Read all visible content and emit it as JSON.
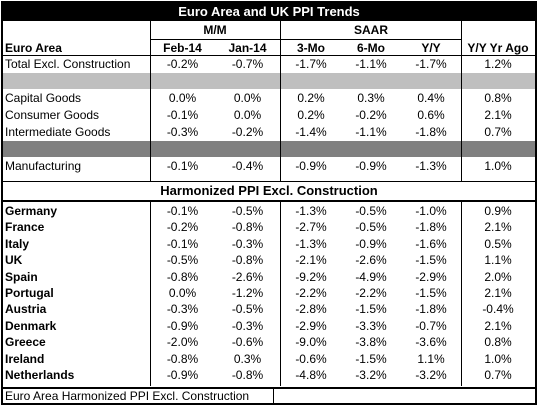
{
  "title": "Euro Area and UK PPI Trends",
  "groups": {
    "mm": "M/M",
    "saar": "SAAR"
  },
  "columns": [
    "Euro Area",
    "Feb-14",
    "Jan-14",
    "3-Mo",
    "6-Mo",
    "Y/Y",
    "Y/Y Yr Ago"
  ],
  "euro_rows": [
    {
      "label": "Total Excl. Construction",
      "values": [
        "-0.2%",
        "-0.7%",
        "-1.7%",
        "-1.1%",
        "-1.7%",
        "1.2%"
      ]
    },
    {
      "label": "Capital Goods",
      "values": [
        "0.0%",
        "0.0%",
        "0.2%",
        "0.3%",
        "0.4%",
        "0.8%"
      ]
    },
    {
      "label": "Consumer Goods",
      "values": [
        "-0.1%",
        "0.0%",
        "0.2%",
        "-0.2%",
        "0.6%",
        "2.1%"
      ]
    },
    {
      "label": "Intermediate Goods",
      "values": [
        "-0.3%",
        "-0.2%",
        "-1.4%",
        "-1.1%",
        "-1.8%",
        "0.7%"
      ]
    },
    {
      "label": "Manufacturing",
      "values": [
        "-0.1%",
        "-0.4%",
        "-0.9%",
        "-0.9%",
        "-1.3%",
        "1.0%"
      ]
    }
  ],
  "harmonized_title": "Harmonized PPI Excl. Construction",
  "countries": [
    {
      "label": "Germany",
      "values": [
        "-0.1%",
        "-0.5%",
        "-1.3%",
        "-0.5%",
        "-1.0%",
        "0.9%"
      ]
    },
    {
      "label": "France",
      "values": [
        "-0.2%",
        "-0.8%",
        "-2.7%",
        "-0.5%",
        "-1.8%",
        "2.1%"
      ]
    },
    {
      "label": "Italy",
      "values": [
        "-0.1%",
        "-0.3%",
        "-1.3%",
        "-0.9%",
        "-1.6%",
        "0.5%"
      ]
    },
    {
      "label": "UK",
      "values": [
        "-0.5%",
        "-0.8%",
        "-2.1%",
        "-2.6%",
        "-1.5%",
        "1.1%"
      ]
    },
    {
      "label": "Spain",
      "values": [
        "-0.8%",
        "-2.6%",
        "-9.2%",
        "-4.9%",
        "-2.9%",
        "2.0%"
      ]
    },
    {
      "label": "Portugal",
      "values": [
        "0.0%",
        "-1.2%",
        "-2.2%",
        "-2.2%",
        "-1.5%",
        "2.1%"
      ]
    },
    {
      "label": "Austria",
      "values": [
        "-0.3%",
        "-0.5%",
        "-2.8%",
        "-1.5%",
        "-1.8%",
        "-0.4%"
      ]
    },
    {
      "label": "Denmark",
      "values": [
        "-0.9%",
        "-0.3%",
        "-2.9%",
        "-3.3%",
        "-0.7%",
        "2.1%"
      ]
    },
    {
      "label": "Greece",
      "values": [
        "-2.0%",
        "-0.6%",
        "-9.0%",
        "-3.8%",
        "-3.6%",
        "0.8%"
      ]
    },
    {
      "label": "Ireland",
      "values": [
        "-0.8%",
        "0.3%",
        "-0.6%",
        "-1.5%",
        "1.1%",
        "1.0%"
      ]
    },
    {
      "label": "Netherlands",
      "values": [
        "-0.9%",
        "-0.8%",
        "-4.8%",
        "-3.2%",
        "-3.2%",
        "0.7%"
      ]
    }
  ],
  "footer": "Euro Area Harmonized PPI Excl. Construction"
}
